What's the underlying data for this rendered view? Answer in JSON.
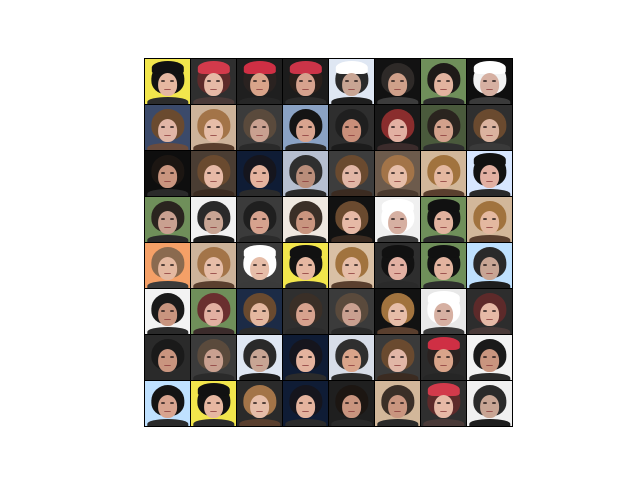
{
  "image": {
    "description_kind": "grid-of-generated-face-samples",
    "rows": 8,
    "cols": 8,
    "palette": {
      "skin": [
        "#e8b9a0",
        "#d9a48a",
        "#c99178",
        "#f0c9b2",
        "#b98d7a",
        "#e1b6a6",
        "#cfa28e",
        "#dcb6a0"
      ],
      "hair_dark": "#1b1612",
      "hair_brown": "#6a4a2f",
      "hair_blond": "#b9894e",
      "hat_red": "#d23a4b",
      "bg_colors": [
        "#101010",
        "#f1f1f1",
        "#2a2a2a",
        "#d7dde8",
        "#6f8f5a",
        "#bfe1ff",
        "#e4c28d",
        "#f5a067",
        "#7a6b5e",
        "#3b3b3b"
      ]
    },
    "tiles": [
      {
        "bg": "#f2e64c",
        "hair": "#121212",
        "skin": "#e6b7a1",
        "shirt": "#2c2c2c",
        "hat": "#111111"
      },
      {
        "bg": "#2f2f2f",
        "hair": "#5d2a2a",
        "skin": "#e6b9a6",
        "shirt": "#4a3a38",
        "hat": "#d23a4b"
      },
      {
        "bg": "#1f1f1f",
        "hair": "#2a2220",
        "skin": "#d9a48a",
        "shirt": "#262626",
        "hat": "#cf2f44"
      },
      {
        "bg": "#1c1c1c",
        "hair": "#2a1f1a",
        "skin": "#d6a28e",
        "shirt": "#2b2b2b",
        "hat": "#cc3448"
      },
      {
        "bg": "#dfe7f3",
        "hair": "#2a2a2a",
        "skin": "#c8a594",
        "shirt": "#1e1e1e",
        "hat": "#ffffff"
      },
      {
        "bg": "#121212",
        "hair": "#2e2a28",
        "skin": "#cfa08a",
        "shirt": "#3c3c3c",
        "hat": null
      },
      {
        "bg": "#6f8f5a",
        "hair": "#1e1a18",
        "skin": "#e2b39f",
        "shirt": "#2d2d2d",
        "hat": null
      },
      {
        "bg": "#0f0f0f",
        "hair": "#f2f2f2",
        "skin": "#d6b0a2",
        "shirt": "#3a3a3a",
        "hat": "#ffffff"
      },
      {
        "bg": "#3b4a6a",
        "hair": "#6a4a2f",
        "skin": "#e1b6a6",
        "shirt": "#6b4c3d",
        "hat": null
      },
      {
        "bg": "#cdb39a",
        "hair": "#a37448",
        "skin": "#e6bda8",
        "shirt": "#5a3f2e",
        "hat": null
      },
      {
        "bg": "#3b3b3b",
        "hair": "#5a4a3c",
        "skin": "#c9a090",
        "shirt": "#2a2a2a",
        "hat": null
      },
      {
        "bg": "#8aa2c4",
        "hair": "#141414",
        "skin": "#d8a48f",
        "shirt": "#2b2b2b",
        "hat": null
      },
      {
        "bg": "#2e2e2e",
        "hair": "#1f1f1f",
        "skin": "#c98f7a",
        "shirt": "#1c1c1c",
        "hat": null
      },
      {
        "bg": "#191919",
        "hair": "#8a2d2d",
        "skin": "#e2b0a2",
        "shirt": "#3b2b2b",
        "hat": null
      },
      {
        "bg": "#4a5a3c",
        "hair": "#2a241f",
        "skin": "#d3a18c",
        "shirt": "#2f2f2f",
        "hat": null
      },
      {
        "bg": "#2f2f2f",
        "hair": "#6a4a2f",
        "skin": "#dbb39f",
        "shirt": "#3a3a3a",
        "hat": null
      },
      {
        "bg": "#0e0e0e",
        "hair": "#1c1612",
        "skin": "#c9957f",
        "shirt": "#2a2a2a",
        "hat": null
      },
      {
        "bg": "#4a3d33",
        "hair": "#6a4a2f",
        "skin": "#e6b9a6",
        "shirt": "#3b2b21",
        "hat": null
      },
      {
        "bg": "#0f1c35",
        "hair": "#15151d",
        "skin": "#e4b39e",
        "shirt": "#2b2b2b",
        "hat": null
      },
      {
        "bg": "#b6bfd0",
        "hair": "#2f2f2f",
        "skin": "#b98d7a",
        "shirt": "#2b2b2b",
        "hat": null
      },
      {
        "bg": "#3d3d3d",
        "hair": "#6a4a2f",
        "skin": "#e1b6a6",
        "shirt": "#3b2b21",
        "hat": null
      },
      {
        "bg": "#6d5b4c",
        "hair": "#a37448",
        "skin": "#e6bda8",
        "shirt": "#4a3a2f",
        "hat": null
      },
      {
        "bg": "#d2b79a",
        "hair": "#a1733e",
        "skin": "#e4b8a0",
        "shirt": "#5a3f2e",
        "hat": null
      },
      {
        "bg": "#d7e6ff",
        "hair": "#121212",
        "skin": "#e2b0a2",
        "shirt": "#2a2a2a",
        "hat": "#111111"
      },
      {
        "bg": "#6f8f5a",
        "hair": "#2a241f",
        "skin": "#c9a090",
        "shirt": "#2a2a2a",
        "hat": null
      },
      {
        "bg": "#f1f1f1",
        "hair": "#2a2a2a",
        "skin": "#c8a594",
        "shirt": "#1e1e1e",
        "hat": null
      },
      {
        "bg": "#3b3b3b",
        "hair": "#1f1f1f",
        "skin": "#d6a28e",
        "shirt": "#2b2b2b",
        "hat": null
      },
      {
        "bg": "#efe8e0",
        "hair": "#3a2f27",
        "skin": "#c9957f",
        "shirt": "#2a2a2a",
        "hat": null
      },
      {
        "bg": "#121212",
        "hair": "#6a4a2f",
        "skin": "#e6b9a6",
        "shirt": "#3b2b21",
        "hat": null
      },
      {
        "bg": "#f0f0f0",
        "hair": "#ffffff",
        "skin": "#d6b0a2",
        "shirt": "#3a3a3a",
        "hat": "#ffffff"
      },
      {
        "bg": "#6f8f5a",
        "hair": "#121212",
        "skin": "#e2b39f",
        "shirt": "#2d2d2d",
        "hat": "#111111"
      },
      {
        "bg": "#d2b79a",
        "hair": "#a1733e",
        "skin": "#e4b8a0",
        "shirt": "#5a3f2e",
        "hat": null
      },
      {
        "bg": "#f5a067",
        "hair": "#8a6a4f",
        "skin": "#e4b8a0",
        "shirt": "#3b3b3b",
        "hat": null
      },
      {
        "bg": "#cdb39a",
        "hair": "#a37448",
        "skin": "#e6bda8",
        "shirt": "#5a3f2e",
        "hat": null
      },
      {
        "bg": "#3b3b3b",
        "hair": "#ffffff",
        "skin": "#e6bda8",
        "shirt": "#3a3a3a",
        "hat": "#ffffff"
      },
      {
        "bg": "#f2e64c",
        "hair": "#121212",
        "skin": "#e6b7a1",
        "shirt": "#2c2c2c",
        "hat": "#111111"
      },
      {
        "bg": "#d9c0a5",
        "hair": "#a1733e",
        "skin": "#e6bda8",
        "shirt": "#5a3f2e",
        "hat": null
      },
      {
        "bg": "#2e2e2e",
        "hair": "#121212",
        "skin": "#e2b0a2",
        "shirt": "#2a2a2a",
        "hat": "#111111"
      },
      {
        "bg": "#6f8f5a",
        "hair": "#121212",
        "skin": "#e2b39f",
        "shirt": "#2d2d2d",
        "hat": "#111111"
      },
      {
        "bg": "#bfe1ff",
        "hair": "#2a2a2a",
        "skin": "#c8a594",
        "shirt": "#1e1e1e",
        "hat": null
      },
      {
        "bg": "#f3f3f3",
        "hair": "#1a1a1a",
        "skin": "#c9957f",
        "shirt": "#2a2a2a",
        "hat": null
      },
      {
        "bg": "#6f8f5a",
        "hair": "#6a2f2f",
        "skin": "#e2b0a2",
        "shirt": "#3b2b2b",
        "hat": null
      },
      {
        "bg": "#1c2b46",
        "hair": "#6a4a2f",
        "skin": "#e4b8a0",
        "shirt": "#2b2b2b",
        "hat": null
      },
      {
        "bg": "#2f2f2f",
        "hair": "#3a2f27",
        "skin": "#d6a28e",
        "shirt": "#2b2b2b",
        "hat": null
      },
      {
        "bg": "#3b3b3b",
        "hair": "#5a4a3c",
        "skin": "#c9a090",
        "shirt": "#2a2a2a",
        "hat": null
      },
      {
        "bg": "#121212",
        "hair": "#a1733e",
        "skin": "#e6bda8",
        "shirt": "#5a3f2e",
        "hat": null
      },
      {
        "bg": "#e8e8e8",
        "hair": "#ffffff",
        "skin": "#d6b0a2",
        "shirt": "#3a3a3a",
        "hat": "#ffffff"
      },
      {
        "bg": "#2d2d2d",
        "hair": "#5d2a2a",
        "skin": "#e6b9a6",
        "shirt": "#4a3a38",
        "hat": null
      },
      {
        "bg": "#2a2a2a",
        "hair": "#1a1a1a",
        "skin": "#c9957f",
        "shirt": "#2a2a2a",
        "hat": null
      },
      {
        "bg": "#3b3b3b",
        "hair": "#5a4a3c",
        "skin": "#c9a090",
        "shirt": "#2a2a2a",
        "hat": null
      },
      {
        "bg": "#dfe7f3",
        "hair": "#2a2a2a",
        "skin": "#c8a594",
        "shirt": "#1e1e1e",
        "hat": null
      },
      {
        "bg": "#0f1c35",
        "hair": "#15151d",
        "skin": "#e4b39e",
        "shirt": "#2b2b2b",
        "hat": null
      },
      {
        "bg": "#d7dde8",
        "hair": "#2f2f2f",
        "skin": "#d9a48a",
        "shirt": "#2b2b2b",
        "hat": null
      },
      {
        "bg": "#3a3a3a",
        "hair": "#6a4a2f",
        "skin": "#e1b6a6",
        "shirt": "#3b2b21",
        "hat": null
      },
      {
        "bg": "#2a2a2a",
        "hair": "#2a2220",
        "skin": "#d9a48a",
        "shirt": "#262626",
        "hat": "#cf2f44"
      },
      {
        "bg": "#f3f3f3",
        "hair": "#1a1a1a",
        "skin": "#c9957f",
        "shirt": "#2a2a2a",
        "hat": null
      },
      {
        "bg": "#bfe1ff",
        "hair": "#141414",
        "skin": "#d8a48f",
        "shirt": "#2b2b2b",
        "hat": null
      },
      {
        "bg": "#f2e64c",
        "hair": "#121212",
        "skin": "#e6b7a1",
        "shirt": "#2c2c2c",
        "hat": "#111111"
      },
      {
        "bg": "#2a2a2a",
        "hair": "#a37448",
        "skin": "#e6bda8",
        "shirt": "#5a3f2e",
        "hat": null
      },
      {
        "bg": "#0f1c35",
        "hair": "#15151d",
        "skin": "#e4b39e",
        "shirt": "#2b2b2b",
        "hat": null
      },
      {
        "bg": "#1f1f1f",
        "hair": "#1c1612",
        "skin": "#c9957f",
        "shirt": "#2a2a2a",
        "hat": null
      },
      {
        "bg": "#d2b79a",
        "hair": "#3a2f27",
        "skin": "#c9957f",
        "shirt": "#2a2a2a",
        "hat": null
      },
      {
        "bg": "#2f2f2f",
        "hair": "#5d2a2a",
        "skin": "#e6b9a6",
        "shirt": "#4a3a38",
        "hat": "#d23a4b"
      },
      {
        "bg": "#f0f0f0",
        "hair": "#2a2a2a",
        "skin": "#c8a594",
        "shirt": "#1e1e1e",
        "hat": null
      }
    ]
  }
}
